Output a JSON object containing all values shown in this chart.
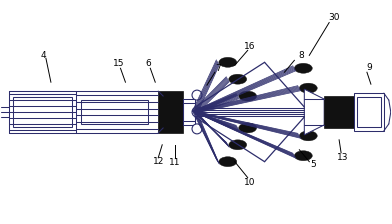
{
  "bg_color": "#ffffff",
  "line_color": "#2d2d6b",
  "black_color": "#111111",
  "figsize": [
    3.92,
    2.24
  ],
  "dpi": 100,
  "lw": 0.75
}
